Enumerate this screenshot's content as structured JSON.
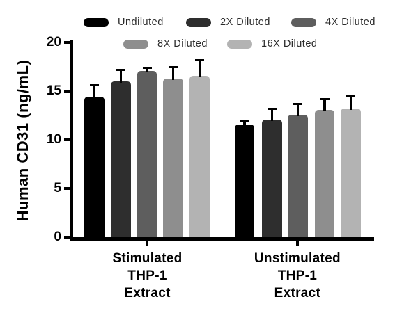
{
  "figure": {
    "background": "#ffffff",
    "text_color": "#000000",
    "legend_text_color": "#2b2b2b"
  },
  "chart_data": {
    "type": "bar",
    "title": "",
    "xlabel": "",
    "ylabel": "Human CD31 (ng/mL)",
    "ylim": [
      0,
      20
    ],
    "yticks": [
      0,
      5,
      10,
      15,
      20
    ],
    "grid": false,
    "legend_position": "top",
    "error_bars": "upper_sd_whiskers",
    "categories": [
      "Stimulated THP-1 Extract",
      "Unstimulated THP-1 Extract"
    ],
    "categories_lines": [
      [
        "Stimulated",
        "THP-1",
        "Extract"
      ],
      [
        "Unstimulated",
        "THP-1",
        "Extract"
      ]
    ],
    "series": [
      {
        "name": "Undiluted",
        "color": "#000000",
        "values": [
          14.4,
          11.6
        ],
        "errors_plus": [
          1.3,
          0.4
        ]
      },
      {
        "name": "2X Diluted",
        "color": "#2e2e2e",
        "values": [
          16.0,
          12.1
        ],
        "errors_plus": [
          1.3,
          1.2
        ]
      },
      {
        "name": "4X Diluted",
        "color": "#5e5e5e",
        "values": [
          17.1,
          12.6
        ],
        "errors_plus": [
          0.4,
          1.2
        ]
      },
      {
        "name": "8X Diluted",
        "color": "#8e8e8e",
        "values": [
          16.3,
          13.1
        ],
        "errors_plus": [
          1.3,
          1.2
        ]
      },
      {
        "name": "16X Diluted",
        "color": "#b3b3b3",
        "values": [
          16.6,
          13.2
        ],
        "errors_plus": [
          1.7,
          1.4
        ]
      }
    ],
    "legend_rows": [
      [
        "Undiluted",
        "2X Diluted",
        "4X Diluted"
      ],
      [
        "8X Diluted",
        "16X Diluted"
      ]
    ]
  }
}
